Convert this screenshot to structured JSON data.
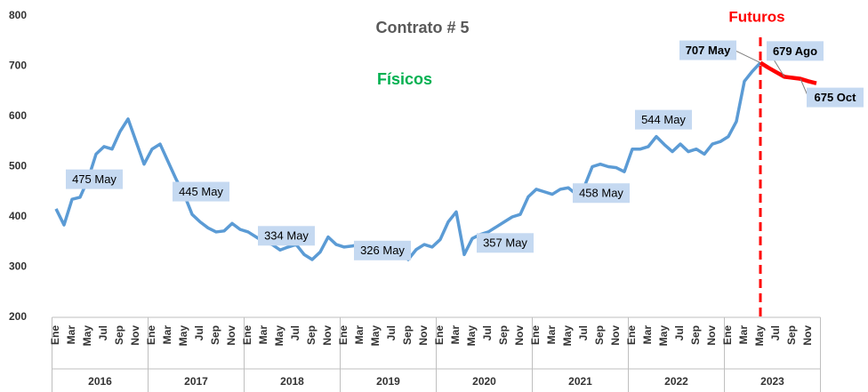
{
  "chart_data": {
    "type": "line",
    "title": "Contrato # 5",
    "categories": [
      "Ene",
      null,
      "Mar",
      null,
      "May",
      null,
      "Jul",
      null,
      "Sep",
      null,
      "Nov",
      null,
      "Ene",
      null,
      "Mar",
      null,
      "May",
      null,
      "Jul",
      null,
      "Sep",
      null,
      "Nov",
      null,
      "Ene",
      null,
      "Mar",
      null,
      "May",
      null,
      "Jul",
      null,
      "Sep",
      null,
      "Nov",
      null,
      "Ene",
      null,
      "Mar",
      null,
      "May",
      null,
      "Jul",
      null,
      "Sep",
      null,
      "Nov",
      null,
      "Ene",
      null,
      "Mar",
      null,
      "May",
      null,
      "Jul",
      null,
      "Sep",
      null,
      "Nov",
      null,
      "Ene",
      null,
      "Mar",
      null,
      "May",
      null,
      "Jul",
      null,
      "Sep",
      null,
      "Nov",
      null,
      "Ene",
      null,
      "Mar",
      null,
      "May",
      null,
      "Jul",
      null,
      "Sep",
      null,
      "Nov",
      null,
      "Ene",
      null,
      "Mar",
      null,
      "May",
      null,
      "Jul",
      null,
      "Sep",
      null,
      "Nov",
      null
    ],
    "years": [
      "2016",
      "2017",
      "2018",
      "2019",
      "2020",
      "2021",
      "2022",
      "2023"
    ],
    "series": [
      {
        "name": "Físicos",
        "color": "#5b9bd5",
        "values": [
          416,
          384,
          435,
          439,
          475,
          525,
          540,
          535,
          570,
          595,
          550,
          505,
          535,
          545,
          510,
          475,
          445,
          405,
          390,
          378,
          370,
          372,
          387,
          375,
          370,
          360,
          350,
          345,
          334,
          340,
          345,
          325,
          315,
          330,
          360,
          345,
          340,
          342,
          345,
          348,
          326,
          330,
          335,
          345,
          315,
          335,
          345,
          340,
          355,
          390,
          410,
          325,
          357,
          365,
          370,
          380,
          390,
          400,
          405,
          440,
          455,
          450,
          445,
          455,
          458,
          445,
          460,
          500,
          505,
          500,
          498,
          490,
          535,
          535,
          540,
          560,
          544,
          530,
          545,
          530,
          535,
          525,
          545,
          550,
          560,
          590,
          670,
          690,
          707,
          null,
          null,
          null,
          null,
          null,
          null,
          null
        ],
        "value_labels": [
          null,
          null,
          null,
          null,
          "475 May",
          null,
          null,
          null,
          null,
          null,
          null,
          null,
          null,
          null,
          null,
          null,
          "445 May",
          null,
          null,
          null,
          null,
          null,
          null,
          null,
          null,
          null,
          null,
          null,
          "334 May",
          null,
          null,
          null,
          null,
          null,
          null,
          null,
          null,
          null,
          null,
          null,
          "326 May",
          null,
          null,
          null,
          null,
          null,
          null,
          null,
          null,
          null,
          null,
          null,
          "357 May",
          null,
          null,
          null,
          null,
          null,
          null,
          null,
          null,
          null,
          null,
          null,
          "458 May",
          null,
          null,
          null,
          null,
          null,
          null,
          null,
          null,
          null,
          null,
          null,
          "544 May",
          null,
          null,
          null,
          null,
          null,
          null,
          null,
          null,
          null,
          null,
          null,
          "707 May",
          null,
          null,
          null,
          null,
          null,
          null,
          null
        ]
      },
      {
        "name": "Futuros",
        "color": "#ff0000",
        "values": [
          null,
          null,
          null,
          null,
          null,
          null,
          null,
          null,
          null,
          null,
          null,
          null,
          null,
          null,
          null,
          null,
          null,
          null,
          null,
          null,
          null,
          null,
          null,
          null,
          null,
          null,
          null,
          null,
          null,
          null,
          null,
          null,
          null,
          null,
          null,
          null,
          null,
          null,
          null,
          null,
          null,
          null,
          null,
          null,
          null,
          null,
          null,
          null,
          null,
          null,
          null,
          null,
          null,
          null,
          null,
          null,
          null,
          null,
          null,
          null,
          null,
          null,
          null,
          null,
          null,
          null,
          null,
          null,
          null,
          null,
          null,
          null,
          null,
          null,
          null,
          null,
          null,
          null,
          null,
          null,
          null,
          null,
          null,
          null,
          null,
          null,
          null,
          null,
          707,
          697,
          688,
          679,
          677,
          675,
          670,
          666
        ],
        "value_labels": [
          null,
          null,
          null,
          null,
          null,
          null,
          null,
          null,
          null,
          null,
          null,
          null,
          null,
          null,
          null,
          null,
          null,
          null,
          null,
          null,
          null,
          null,
          null,
          null,
          null,
          null,
          null,
          null,
          null,
          null,
          null,
          null,
          null,
          null,
          null,
          null,
          null,
          null,
          null,
          null,
          null,
          null,
          null,
          null,
          null,
          null,
          null,
          null,
          null,
          null,
          null,
          null,
          null,
          null,
          null,
          null,
          null,
          null,
          null,
          null,
          null,
          null,
          null,
          null,
          null,
          null,
          null,
          null,
          null,
          null,
          null,
          null,
          null,
          null,
          null,
          null,
          null,
          null,
          null,
          null,
          null,
          null,
          null,
          null,
          null,
          null,
          null,
          null,
          null,
          null,
          null,
          "679 Ago",
          null,
          "675 Oct",
          null,
          null
        ]
      }
    ],
    "ylim": [
      200,
      800
    ],
    "yticks": [
      200,
      300,
      400,
      500,
      600,
      700,
      800
    ],
    "grid": false
  }
}
